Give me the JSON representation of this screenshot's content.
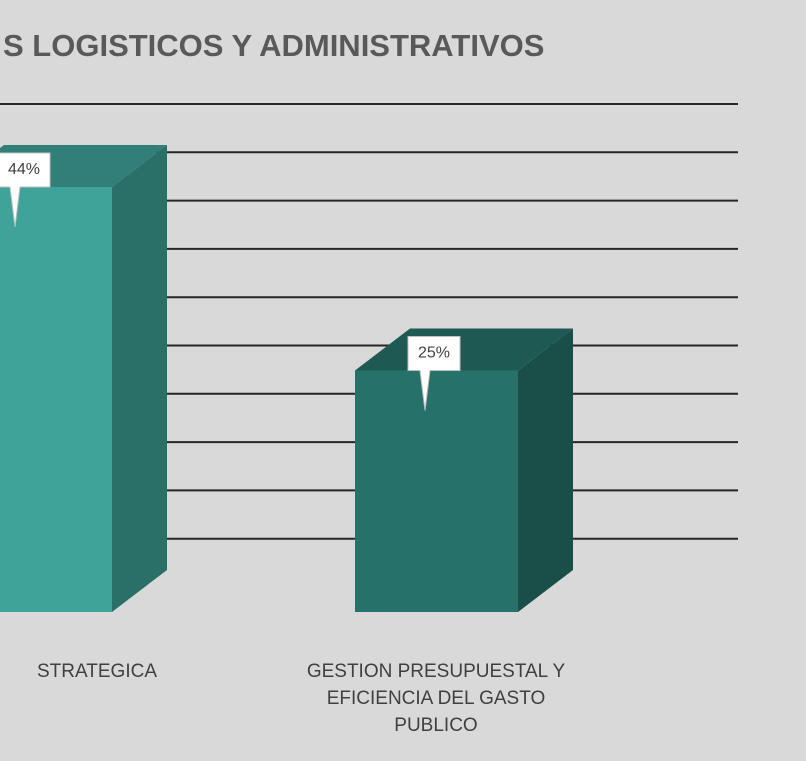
{
  "chart_data": {
    "type": "bar3d",
    "title": "S LOGISTICOS Y ADMINISTRATIVOS",
    "categories": [
      "STRATEGICA",
      "GESTION PRESUPUESTAL Y EFICIENCIA DEL GASTO PUBLICO"
    ],
    "values": [
      44,
      25
    ],
    "value_labels": [
      "44%",
      "25%"
    ],
    "colors": [
      "#3fa39a",
      "#26726a"
    ],
    "ylim": [
      0,
      50
    ],
    "yticks": [
      5,
      10,
      15,
      20,
      25,
      30,
      35,
      40,
      45,
      50
    ],
    "grid": true
  }
}
